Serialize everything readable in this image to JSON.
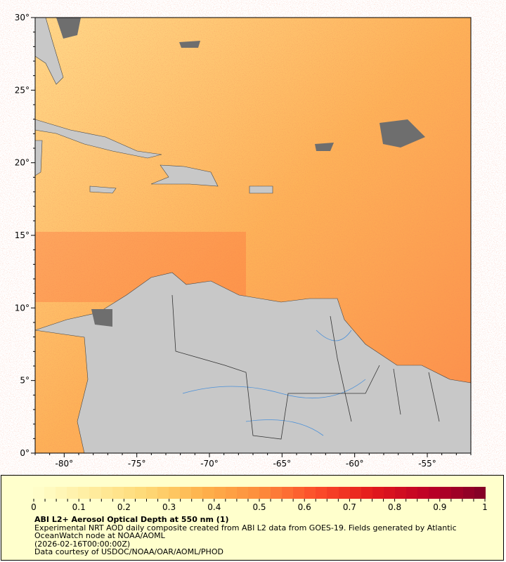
{
  "map": {
    "lon_range": [
      -82,
      -52
    ],
    "lat_range": [
      0,
      30
    ],
    "lon_ticks": [
      "-80°",
      "-75°",
      "-70°",
      "-65°",
      "-60°",
      "-55°"
    ],
    "lat_ticks": [
      "0°",
      "5°",
      "10°",
      "15°",
      "20°",
      "25°",
      "30°"
    ],
    "colors": {
      "land": "#c8c8c8",
      "no_data": "#6e6e6e",
      "border": "#333333",
      "river": "#4a90d9"
    }
  },
  "legend": {
    "tick_labels": [
      "0",
      "0.1",
      "0.2",
      "0.3",
      "0.4",
      "0.5",
      "0.6",
      "0.7",
      "0.8",
      "0.9",
      "1"
    ],
    "range": [
      0,
      1
    ],
    "color_stops": [
      "#ffffcc",
      "#ffeda0",
      "#fed976",
      "#feb24c",
      "#fd8d3c",
      "#fc4e2a",
      "#e31a1c",
      "#bd0026",
      "#800026"
    ],
    "title": "ABI L2+ Aerosol Optical Depth at 550 nm (1)",
    "line1": "Experimental NRT AOD daily composite created from ABI L2 data from GOES-19. Fields generated by Atlantic",
    "line2": "OceanWatch node at NOAA/AOML",
    "line3": "(2026-02-16T00:00:00Z)",
    "line4": "Data courtesy of USDOC/NOAA/OAR/AOML/PHOD"
  }
}
